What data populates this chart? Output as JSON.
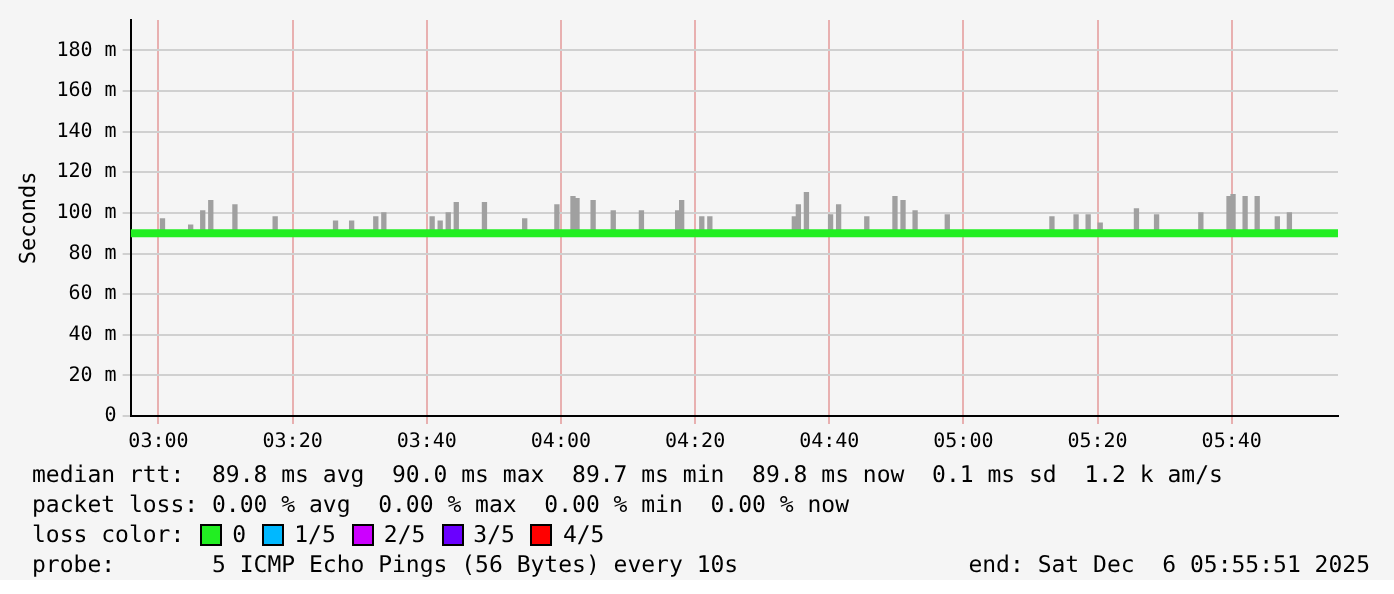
{
  "chart_data": {
    "type": "line",
    "ylabel": "Seconds",
    "xlim": [
      2.9308,
      5.9308
    ],
    "ylim": [
      0,
      195
    ],
    "xticks": [
      {
        "value": 3,
        "label": "03:00"
      },
      {
        "value": 3.3333,
        "label": "03:20"
      },
      {
        "value": 3.6667,
        "label": "03:40"
      },
      {
        "value": 4,
        "label": "04:00"
      },
      {
        "value": 4.3333,
        "label": "04:20"
      },
      {
        "value": 4.6667,
        "label": "04:40"
      },
      {
        "value": 5,
        "label": "05:00"
      },
      {
        "value": 5.3333,
        "label": "05:20"
      },
      {
        "value": 5.6667,
        "label": "05:40"
      }
    ],
    "yticks": [
      0,
      {
        "value": 20,
        "label": "20 m"
      },
      {
        "value": 40,
        "label": "40 m"
      },
      {
        "value": 60,
        "label": "60 m"
      },
      {
        "value": 80,
        "label": "80 m"
      },
      {
        "value": 100,
        "label": "100 m"
      },
      {
        "value": 120,
        "label": "120 m"
      },
      {
        "value": 140,
        "label": "140 m"
      },
      {
        "value": 160,
        "label": "160 m"
      },
      {
        "value": 180,
        "label": "180 m"
      }
    ],
    "grid": true,
    "legend": "bottom",
    "legend_title": "loss color:",
    "series": [
      {
        "type": "bar",
        "color": "#a0a0a0",
        "x": [
          3.01,
          3.08,
          3.11,
          3.13,
          3.19,
          3.29,
          3.44,
          3.48,
          3.54,
          3.56,
          3.68,
          3.7,
          3.72,
          3.74,
          3.81,
          3.91,
          3.99,
          4.03,
          4.04,
          4.08,
          4.13,
          4.2,
          4.29,
          4.3,
          4.35,
          4.37,
          4.58,
          4.59,
          4.61,
          4.67,
          4.69,
          4.76,
          4.83,
          4.85,
          4.88,
          4.96,
          5.22,
          5.28,
          5.31,
          5.34,
          5.43,
          5.48,
          5.59,
          5.66,
          5.67,
          5.7,
          5.73,
          5.78,
          5.81
        ],
        "base": [
          89,
          89,
          89,
          89,
          89,
          89,
          89,
          89,
          89,
          89,
          89,
          89,
          89,
          89,
          89,
          89,
          89,
          89,
          89,
          89,
          89,
          89,
          89,
          89,
          89,
          89,
          89,
          89,
          89,
          89,
          89,
          89,
          89,
          89,
          89,
          89,
          89,
          89,
          89,
          89,
          89,
          89,
          89,
          89,
          89,
          89,
          89,
          89,
          89
        ],
        "values": [
          8,
          5,
          12,
          17,
          15,
          9,
          7,
          7,
          9,
          11,
          9,
          7,
          11,
          16,
          16,
          8,
          15,
          19,
          18,
          17,
          12,
          12,
          12,
          17,
          9,
          9,
          9,
          15,
          21,
          10,
          15,
          9,
          19,
          17,
          12,
          10,
          9,
          10,
          10,
          6,
          13,
          10,
          11,
          19,
          20,
          19,
          19,
          9,
          11
        ]
      },
      {
        "name": "0",
        "color": "#22ee22",
        "x": [
          2.9308,
          5.9308
        ],
        "values": [
          90,
          90
        ]
      },
      {
        "name": "1/5",
        "color": "#00b8ff"
      },
      {
        "name": "2/5",
        "color": "#cc00ff"
      },
      {
        "name": "3/5",
        "color": "#6a00ff"
      },
      {
        "name": "4/5",
        "color": "#ff0000"
      }
    ],
    "annotations": [
      "median rtt:  89.8 ms avg  90.0 ms max  89.7 ms min  89.8 ms now  0.1 ms sd  1.2 k am/s",
      "packet loss: 0.00 % avg  0.00 % max  0.00 % min  0.00 % now",
      "probe:       5 ICMP Echo Pings (56 Bytes) every 10s",
      "end: Sat Dec  6 05:55:51 2025"
    ]
  }
}
